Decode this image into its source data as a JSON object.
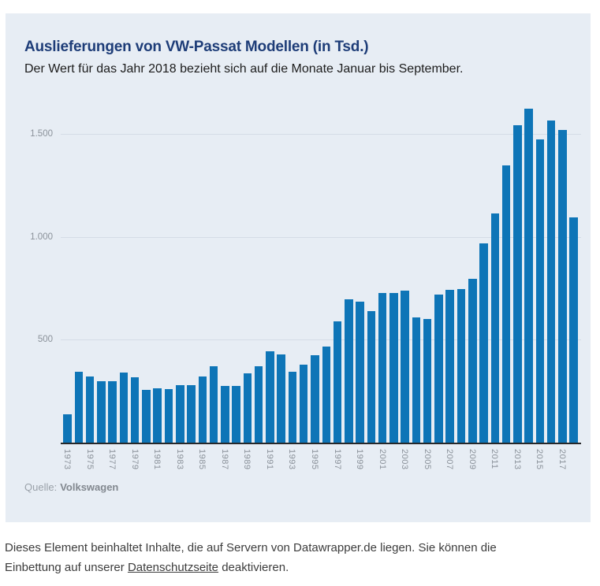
{
  "colors": {
    "bar": "#0e75b7",
    "card_background": "#e7edf4",
    "title": "#1e3d78"
  },
  "header": {
    "title": "Auslieferungen von VW-Passat Modellen (in Tsd.)",
    "subtitle": "Der Wert für das Jahr 2018 bezieht sich auf die Monate Januar bis September."
  },
  "chart_data": {
    "type": "bar",
    "title": "Auslieferungen von VW-Passat Modellen (in Tsd.)",
    "subtitle": "Der Wert für das Jahr 2018 bezieht sich auf die Monate Januar bis September.",
    "xlabel": "",
    "ylabel": "",
    "ylim": [
      0,
      1635
    ],
    "grid": true,
    "legend_position": "none",
    "bar_color": "#0e75b7",
    "x_tick_every": 2,
    "y_ticks": [
      {
        "value": 500,
        "label": "500"
      },
      {
        "value": 1000,
        "label": "1.000"
      },
      {
        "value": 1500,
        "label": "1.500"
      }
    ],
    "categories": [
      "1973",
      "1974",
      "1975",
      "1976",
      "1977",
      "1978",
      "1979",
      "1980",
      "1981",
      "1982",
      "1983",
      "1984",
      "1985",
      "1986",
      "1987",
      "1988",
      "1989",
      "1990",
      "1991",
      "1992",
      "1993",
      "1994",
      "1995",
      "1996",
      "1997",
      "1998",
      "1999",
      "2000",
      "2001",
      "2002",
      "2003",
      "2004",
      "2005",
      "2006",
      "2007",
      "2008",
      "2009",
      "2010",
      "2011",
      "2012",
      "2013",
      "2014",
      "2015",
      "2016",
      "2017",
      "2018"
    ],
    "values": [
      138,
      345,
      320,
      297,
      297,
      341,
      318,
      255,
      265,
      260,
      281,
      281,
      322,
      370,
      277,
      275,
      338,
      370,
      445,
      430,
      345,
      381,
      425,
      468,
      591,
      698,
      685,
      638,
      727,
      726,
      740,
      610,
      600,
      719,
      742,
      745,
      797,
      969,
      1116,
      1348,
      1543,
      1622,
      1473,
      1566,
      1521,
      1097
    ]
  },
  "source": {
    "prefix": "Quelle:",
    "name": "Volkswagen"
  },
  "footer": {
    "text_before_link": "Dieses Element beinhaltet Inhalte, die auf Servern von Datawrapper.de liegen. Sie können die Einbettung auf unserer ",
    "link_text": "Datenschutzseite",
    "text_after_link": " deaktivieren."
  }
}
